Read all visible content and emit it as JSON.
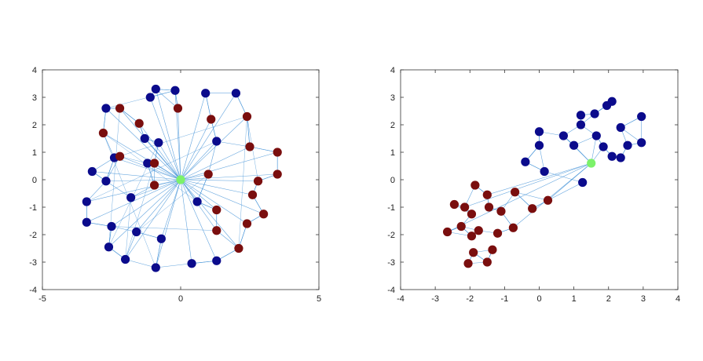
{
  "chart_data": [
    {
      "type": "scatter",
      "title": "",
      "xlabel": "",
      "ylabel": "",
      "xlim": [
        -5,
        5
      ],
      "ylim": [
        -4,
        4
      ],
      "xticks": [
        "-5",
        "0",
        "5"
      ],
      "yticks": [
        "-4",
        "-3",
        "-2",
        "-1",
        "0",
        "1",
        "2",
        "3",
        "4"
      ],
      "grid": false,
      "legend": "none",
      "colors": {
        "blue": "#0b0b8c",
        "red": "#7a0e0e",
        "green": "#7cf26a",
        "edge": "#3d8fd6"
      },
      "center": {
        "x": 0,
        "y": 0
      },
      "series": [
        {
          "color": "blue",
          "points": [
            [
              -0.9,
              3.3
            ],
            [
              -0.2,
              3.25
            ],
            [
              0.9,
              3.15
            ],
            [
              2.0,
              3.15
            ],
            [
              -1.1,
              3.0
            ],
            [
              -2.7,
              2.6
            ],
            [
              -1.3,
              1.5
            ],
            [
              1.3,
              1.4
            ],
            [
              -0.8,
              1.35
            ],
            [
              -2.4,
              0.8
            ],
            [
              -1.2,
              0.6
            ],
            [
              -3.2,
              0.3
            ],
            [
              -2.7,
              -0.05
            ],
            [
              -3.4,
              -0.8
            ],
            [
              -1.8,
              -0.65
            ],
            [
              0.6,
              -0.8
            ],
            [
              -3.4,
              -1.55
            ],
            [
              -2.5,
              -1.7
            ],
            [
              -1.6,
              -1.9
            ],
            [
              -0.7,
              -2.15
            ],
            [
              -2.6,
              -2.45
            ],
            [
              -2.0,
              -2.9
            ],
            [
              -0.9,
              -3.2
            ],
            [
              0.4,
              -3.05
            ],
            [
              1.3,
              -2.95
            ]
          ]
        },
        {
          "color": "red",
          "points": [
            [
              -2.2,
              2.6
            ],
            [
              -1.5,
              2.05
            ],
            [
              -0.1,
              2.6
            ],
            [
              1.1,
              2.2
            ],
            [
              2.4,
              2.3
            ],
            [
              -2.8,
              1.7
            ],
            [
              2.5,
              1.2
            ],
            [
              3.5,
              1.0
            ],
            [
              -2.2,
              0.85
            ],
            [
              -0.95,
              0.6
            ],
            [
              3.5,
              0.2
            ],
            [
              1.0,
              0.2
            ],
            [
              2.8,
              -0.05
            ],
            [
              -0.95,
              -0.2
            ],
            [
              2.6,
              -0.55
            ],
            [
              1.3,
              -1.1
            ],
            [
              3.0,
              -1.25
            ],
            [
              2.4,
              -1.6
            ],
            [
              1.3,
              -1.85
            ],
            [
              2.1,
              -2.5
            ]
          ]
        }
      ]
    },
    {
      "type": "scatter",
      "title": "",
      "xlabel": "",
      "ylabel": "",
      "xlim": [
        -4,
        4
      ],
      "ylim": [
        -4,
        4
      ],
      "xticks": [
        "-4",
        "-3",
        "-2",
        "-1",
        "0",
        "1",
        "2",
        "3",
        "4"
      ],
      "yticks": [
        "-4",
        "-3",
        "-2",
        "-1",
        "0",
        "1",
        "2",
        "3",
        "4"
      ],
      "grid": false,
      "legend": "none",
      "colors": {
        "blue": "#0b0b8c",
        "red": "#7a0e0e",
        "green": "#7cf26a",
        "edge": "#3d8fd6"
      },
      "center": {
        "x": 1.5,
        "y": 0.6
      },
      "series": [
        {
          "color": "blue",
          "points": [
            [
              2.1,
              2.85
            ],
            [
              1.95,
              2.7
            ],
            [
              2.95,
              2.3
            ],
            [
              1.2,
              2.35
            ],
            [
              1.6,
              2.4
            ],
            [
              2.35,
              1.9
            ],
            [
              1.2,
              2.0
            ],
            [
              0.0,
              1.75
            ],
            [
              0.7,
              1.6
            ],
            [
              1.65,
              1.6
            ],
            [
              0.0,
              1.25
            ],
            [
              1.0,
              1.25
            ],
            [
              1.85,
              1.2
            ],
            [
              2.55,
              1.25
            ],
            [
              2.95,
              1.35
            ],
            [
              2.1,
              0.85
            ],
            [
              2.35,
              0.8
            ],
            [
              -0.4,
              0.65
            ],
            [
              0.15,
              0.3
            ],
            [
              1.25,
              -0.1
            ]
          ]
        },
        {
          "color": "red",
          "points": [
            [
              -1.85,
              -0.2
            ],
            [
              -1.5,
              -0.55
            ],
            [
              -0.7,
              -0.45
            ],
            [
              -2.45,
              -0.9
            ],
            [
              -2.15,
              -1.0
            ],
            [
              -1.45,
              -1.0
            ],
            [
              -1.1,
              -1.15
            ],
            [
              -0.2,
              -1.05
            ],
            [
              0.25,
              -0.75
            ],
            [
              -1.95,
              -1.25
            ],
            [
              -2.65,
              -1.9
            ],
            [
              -2.25,
              -1.7
            ],
            [
              -1.75,
              -1.85
            ],
            [
              -1.2,
              -1.95
            ],
            [
              -0.75,
              -1.75
            ],
            [
              -1.95,
              -2.05
            ],
            [
              -1.35,
              -2.55
            ],
            [
              -1.9,
              -2.65
            ],
            [
              -2.05,
              -3.05
            ],
            [
              -1.5,
              -3.0
            ]
          ]
        }
      ]
    }
  ]
}
